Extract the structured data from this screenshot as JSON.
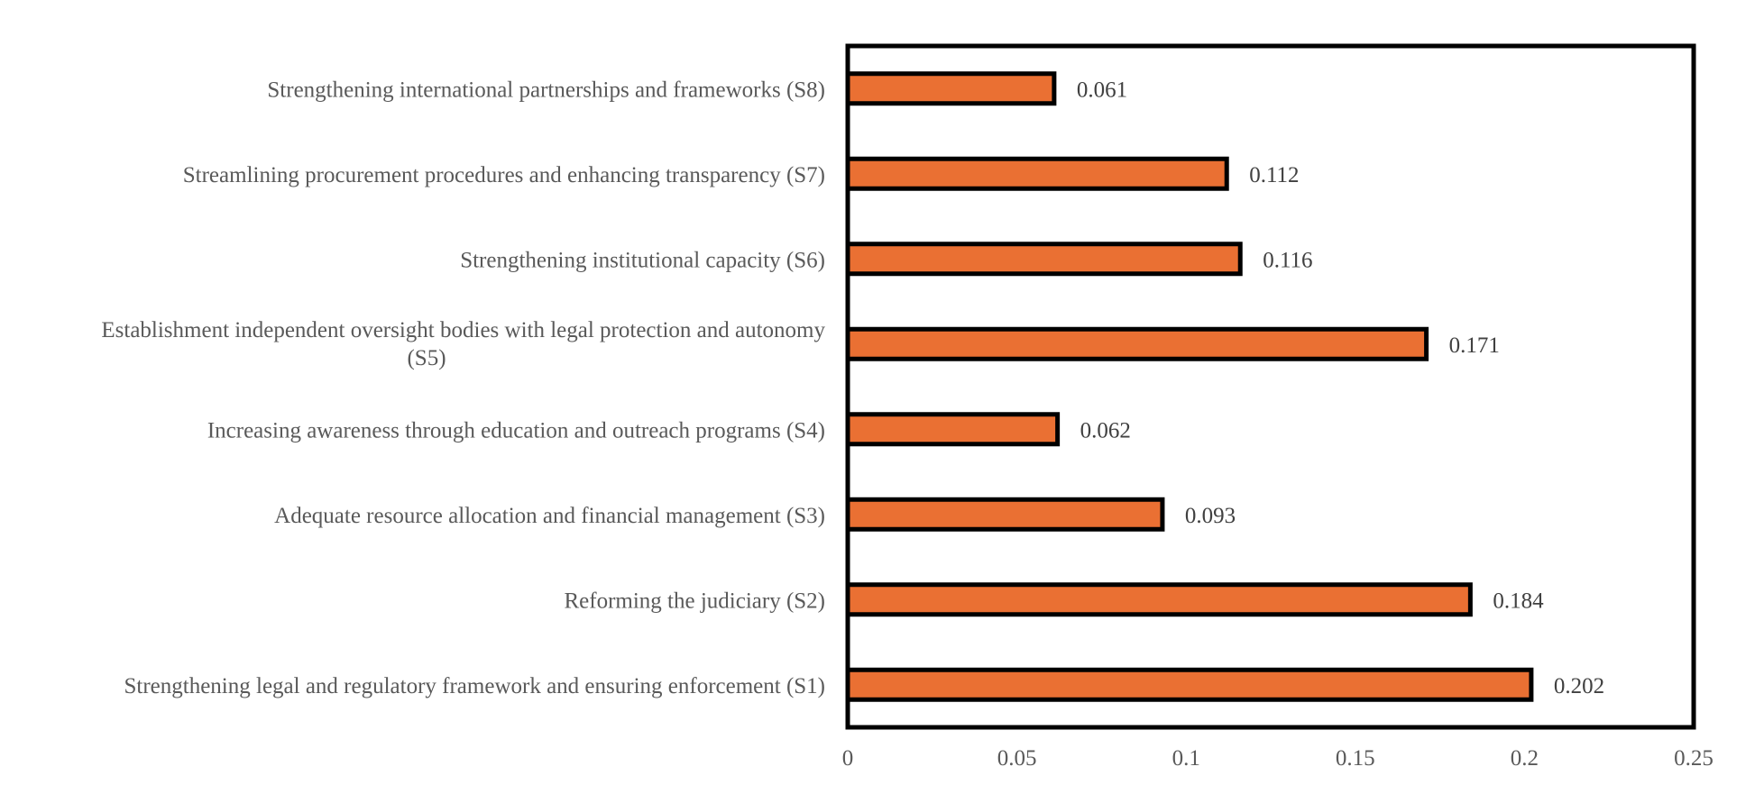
{
  "chart_data": {
    "type": "bar",
    "orientation": "horizontal",
    "categories": [
      "Strengthening international partnerships and frameworks (S8)",
      "Streamlining procurement procedures and enhancing transparency (S7)",
      "Strengthening institutional capacity (S6)",
      [
        "Establishment independent oversight bodies with legal protection and autonomy",
        "(S5)"
      ],
      "Increasing awareness through education and outreach programs (S4)",
      "Adequate resource allocation and financial management (S3)",
      "Reforming the judiciary (S2)",
      "Strengthening legal and regulatory framework and ensuring  enforcement  (S1)"
    ],
    "values": [
      0.061,
      0.112,
      0.116,
      0.171,
      0.062,
      0.093,
      0.184,
      0.202
    ],
    "value_labels": [
      "0.061",
      "0.112",
      "0.116",
      "0.171",
      "0.062",
      "0.093",
      "0.184",
      "0.202"
    ],
    "xlim": [
      0,
      0.25
    ],
    "xticks": [
      0,
      0.05,
      0.1,
      0.15,
      0.2,
      0.25
    ],
    "xtick_labels": [
      "0",
      "0.05",
      "0.1",
      "0.15",
      "0.2",
      "0.25"
    ],
    "title": "",
    "xlabel": "",
    "ylabel": "",
    "grid": false,
    "legend": "none",
    "bar_color": "#EA7033",
    "bar_edge_color": "#000000"
  }
}
